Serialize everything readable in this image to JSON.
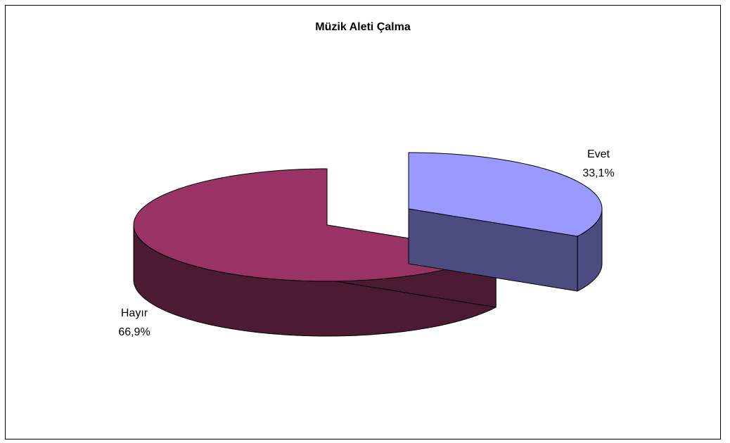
{
  "chart_data": {
    "type": "pie",
    "title": "Müzik Aleti Çalma",
    "categories": [
      "Evet",
      "Hayır"
    ],
    "values": [
      33.1,
      66.9
    ],
    "value_labels": [
      "33,1%",
      "66,9%"
    ],
    "colors": {
      "Evet": {
        "top": "#9999FF",
        "side": "#4C4C80"
      },
      "Hayır": {
        "top": "#993366",
        "side": "#4D1A33"
      }
    },
    "exploded": true,
    "legend": "none"
  }
}
